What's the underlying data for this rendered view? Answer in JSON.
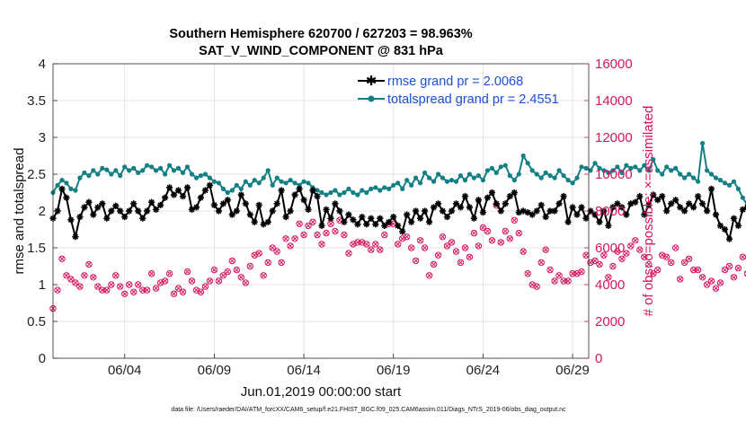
{
  "chart_data": {
    "type": "line",
    "title_line1": "Southern Hemisphere 620700 / 627203 = 98.963%",
    "title_line2": "SAT_V_WIND_COMPONENT @ 831 hPa",
    "xlabel": "Jun.01,2019 00:00:00 start",
    "ylabel_left": "rmse and totalspread",
    "ylabel_right": "# of obs: o=possible; ×=assimilated",
    "footnote": "data file: /Users/raeder/DAI/ATM_forcXX/CAM6_setup/f.e21.FHIST_BGC.f09_025.CAM6assim.011/Diags_NTrS_2019-06/obs_diag_output.nc",
    "xlim": [
      1.0,
      30.9
    ],
    "ylim_left": [
      0,
      4
    ],
    "ylim_right": [
      0,
      16000
    ],
    "x_ticks": [
      5,
      10,
      15,
      20,
      25,
      30
    ],
    "x_tick_labels": [
      "06/04",
      "06/09",
      "06/14",
      "06/19",
      "06/24",
      "06/29"
    ],
    "y_ticks_left": [
      "0",
      "0.5",
      "1",
      "1.5",
      "2",
      "2.5",
      "3",
      "3.5",
      "4"
    ],
    "y_ticks_right": [
      "0",
      "2000",
      "4000",
      "6000",
      "8000",
      "10000",
      "12000",
      "14000",
      "16000"
    ],
    "time_step_days": 0.25,
    "series": [
      {
        "name": "rmse grand pr = 2.0068",
        "color": "#000000",
        "axis": "left",
        "marker": "asterisk",
        "values": [
          1.9,
          2.0,
          2.3,
          2.18,
          1.88,
          1.65,
          1.92,
          2.05,
          2.12,
          1.95,
          2.05,
          2.1,
          1.9,
          2.0,
          2.07,
          2.0,
          1.92,
          2.0,
          2.1,
          2.0,
          1.9,
          2.0,
          2.12,
          2.02,
          2.08,
          2.18,
          2.32,
          2.22,
          2.28,
          2.2,
          2.32,
          2.02,
          2.05,
          2.18,
          2.28,
          2.35,
          2.08,
          2.0,
          2.1,
          2.15,
          1.95,
          2.0,
          2.22,
          2.1,
          1.95,
          1.85,
          2.08,
          1.82,
          1.85,
          2.0,
          2.1,
          2.28,
          1.92,
          2.0,
          2.22,
          2.3,
          2.15,
          2.02,
          2.28,
          2.2,
          1.8,
          2.02,
          1.9,
          2.1,
          2.0,
          1.85,
          1.95,
          1.88,
          1.82,
          1.92,
          1.82,
          1.9,
          1.82,
          1.9,
          1.8,
          1.85,
          1.92,
          1.8,
          1.72,
          1.95,
          1.85,
          2.0,
          1.9,
          2.0,
          1.85,
          2.05,
          2.1,
          2.0,
          1.92,
          2.0,
          2.1,
          2.05,
          2.2,
          2.05,
          1.9,
          2.15,
          1.98,
          2.18,
          2.25,
          2.1,
          2.0,
          2.1,
          2.2,
          2.25,
          1.98,
          2.0,
          1.98,
          1.95,
          2.0,
          2.08,
          1.92,
          2.0,
          2.0,
          2.1,
          2.2,
          1.85,
          2.05,
          1.95,
          2.05,
          1.9,
          2.0,
          1.95,
          1.85,
          2.0,
          1.8,
          2.05,
          2.1,
          2.05,
          1.95,
          2.1,
          2.12,
          2.2,
          1.95,
          2.08,
          2.22,
          2.15,
          2.2,
          2.0,
          2.1,
          2.15,
          2.05,
          2.0,
          2.1,
          2.05,
          2.2,
          2.1,
          2.0,
          2.3,
          1.95,
          1.8,
          1.75,
          1.62,
          1.9,
          1.8,
          2.02,
          2.05,
          1.88,
          1.75,
          1.8,
          2.0,
          2.08,
          2.1,
          2.12,
          2.1,
          2.15,
          2.22,
          2.1,
          2.25,
          2.2,
          2.3,
          2.32,
          2.15,
          2.1
        ]
      },
      {
        "name": "totalspread grand pr = 2.4551",
        "color": "#128085",
        "axis": "left",
        "marker": "dot",
        "values": [
          2.25,
          2.35,
          2.42,
          2.38,
          2.3,
          2.28,
          2.45,
          2.52,
          2.48,
          2.55,
          2.5,
          2.58,
          2.56,
          2.5,
          2.55,
          2.48,
          2.6,
          2.55,
          2.58,
          2.52,
          2.55,
          2.62,
          2.6,
          2.55,
          2.58,
          2.5,
          2.62,
          2.55,
          2.58,
          2.52,
          2.6,
          2.5,
          2.45,
          2.48,
          2.5,
          2.45,
          2.4,
          2.38,
          2.3,
          2.25,
          2.28,
          2.35,
          2.3,
          2.4,
          2.35,
          2.42,
          2.38,
          2.45,
          2.55,
          2.35,
          2.45,
          2.4,
          2.38,
          2.42,
          2.38,
          2.35,
          2.4,
          2.38,
          2.32,
          2.28,
          2.25,
          2.22,
          2.25,
          2.28,
          2.22,
          2.25,
          2.3,
          2.25,
          2.22,
          2.28,
          2.25,
          2.3,
          2.32,
          2.28,
          2.32,
          2.3,
          2.35,
          2.38,
          2.3,
          2.42,
          2.35,
          2.45,
          2.38,
          2.52,
          2.45,
          2.4,
          2.5,
          2.45,
          2.4,
          2.42,
          2.4,
          2.48,
          2.42,
          2.5,
          2.45,
          2.48,
          2.42,
          2.55,
          2.58,
          2.52,
          2.6,
          2.62,
          2.48,
          2.42,
          2.5,
          2.75,
          2.65,
          2.55,
          2.5,
          2.45,
          2.52,
          2.48,
          2.45,
          2.55,
          2.48,
          2.42,
          2.38,
          2.45,
          2.6,
          2.58,
          2.55,
          2.65,
          2.58,
          2.55,
          2.52,
          2.55,
          2.6,
          2.52,
          2.62,
          2.58,
          2.6,
          2.55,
          2.62,
          2.55,
          2.7,
          2.55,
          2.5,
          2.6,
          2.55,
          2.58,
          2.5,
          2.45,
          2.5,
          2.45,
          2.4,
          2.92,
          2.55,
          2.5,
          2.45,
          2.42,
          2.38,
          2.35,
          2.4,
          2.3,
          2.18,
          2.08,
          2.35,
          2.45,
          2.38,
          2.25,
          2.3,
          2.42,
          2.55,
          2.6,
          2.55,
          2.58,
          2.65,
          2.6,
          2.65,
          2.62,
          2.68,
          2.62,
          2.6,
          2.65,
          2.62,
          2.7,
          2.7
        ]
      },
      {
        "name": "obs possible",
        "color": "#d6145f",
        "axis": "right",
        "marker": "circle",
        "values": [
          2700,
          3700,
          5400,
          4500,
          4300,
          4100,
          3900,
          4500,
          5100,
          4400,
          3900,
          3700,
          3700,
          4000,
          4500,
          3900,
          3500,
          4000,
          3600,
          4000,
          3700,
          3700,
          4600,
          3800,
          4100,
          4200,
          4600,
          3500,
          3800,
          3600,
          4700,
          4200,
          3700,
          3600,
          3900,
          4200,
          4800,
          4200,
          4500,
          4700,
          5300,
          4800,
          4400,
          4100,
          5000,
          5600,
          5700,
          4500,
          5200,
          6000,
          5800,
          5200,
          6500,
          6100,
          6500,
          7300,
          6700,
          7200,
          7400,
          6700,
          6200,
          6800,
          7300,
          6900,
          7500,
          6700,
          5700,
          6200,
          6300,
          6300,
          6200,
          5900,
          6200,
          5900,
          6700,
          7300,
          7300,
          6200,
          6500,
          6600,
          6000,
          5300,
          6400,
          6000,
          4500,
          5100,
          5600,
          6600,
          6100,
          6300,
          5800,
          5200,
          6000,
          5500,
          6800,
          6100,
          7100,
          6900,
          6400,
          8300,
          6300,
          6900,
          6500,
          7500,
          6800,
          5800,
          4600,
          4000,
          3900,
          5200,
          5900,
          4800,
          4200,
          4500,
          4200,
          4200,
          4600,
          4600,
          4700,
          5600,
          5200,
          5300,
          5100,
          5600,
          4400,
          5000,
          5800,
          5400,
          5700,
          6100,
          6400,
          5900,
          5500,
          5100,
          4600,
          4800,
          5600,
          5500,
          5200,
          6000,
          4300,
          5200,
          5400,
          4800,
          4800,
          4400,
          4000,
          4200,
          3800,
          4100,
          4800,
          5000,
          4400,
          4900,
          5500,
          4600,
          4200,
          4700,
          4800,
          5400,
          5400,
          5600,
          5700,
          6400,
          5600,
          5500,
          6200,
          5900,
          4900,
          4500,
          4400,
          4500,
          6300,
          4900,
          5200,
          5100,
          6200,
          4600,
          5600,
          5800,
          6700,
          5400,
          5500,
          5000,
          4500,
          0
        ]
      }
    ]
  }
}
